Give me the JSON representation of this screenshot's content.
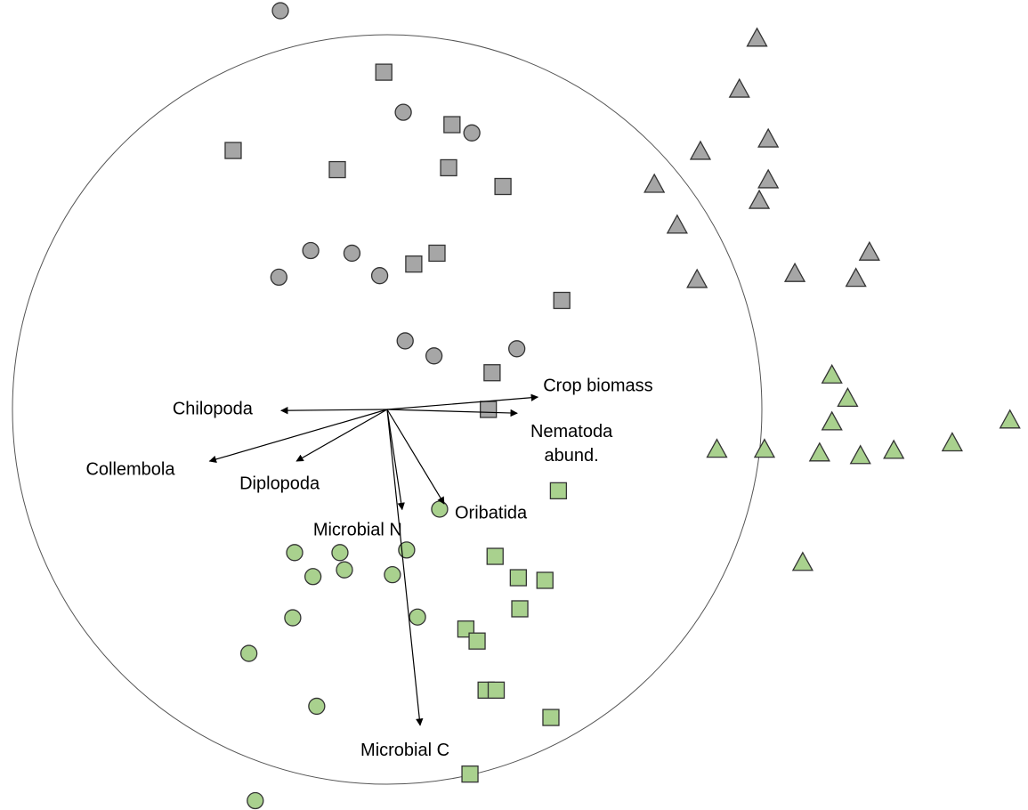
{
  "chart_data": {
    "type": "scatter",
    "title": "",
    "xlabel": "",
    "ylabel": "",
    "grid": false,
    "legend": "none",
    "origin": [
      0,
      0
    ],
    "circle_radius": 1.0,
    "colors": {
      "gray_fill": "#a6a6a6",
      "green_fill": "#a9d18e",
      "marker_stroke": "#333333",
      "axis_line": "#000000"
    },
    "vectors": [
      {
        "label": "Chilopoda",
        "x": -0.283,
        "y": -0.003
      },
      {
        "label": "Collembola",
        "x": -0.474,
        "y": -0.138
      },
      {
        "label": "Diplopoda",
        "x": -0.242,
        "y": -0.138
      },
      {
        "label": "Crop biomass",
        "x": 0.402,
        "y": 0.033
      },
      {
        "label": "Nematoda abund.",
        "x": 0.347,
        "y": -0.01
      },
      {
        "label": "Oribatida",
        "x": 0.152,
        "y": -0.252
      },
      {
        "label": "Microbial N",
        "x": 0.04,
        "y": -0.267
      },
      {
        "label": "Microbial C",
        "x": 0.088,
        "y": -0.843
      }
    ],
    "series": [
      {
        "marker": "circle",
        "color": "gray",
        "points": [
          [
            -0.285,
            1.064
          ],
          [
            0.043,
            0.793
          ],
          [
            0.226,
            0.738
          ],
          [
            -0.204,
            0.424
          ],
          [
            -0.094,
            0.417
          ],
          [
            -0.289,
            0.353
          ],
          [
            -0.02,
            0.357
          ],
          [
            0.048,
            0.183
          ],
          [
            0.125,
            0.143
          ],
          [
            0.346,
            0.162
          ]
        ]
      },
      {
        "marker": "square",
        "color": "gray",
        "points": [
          [
            -0.009,
            0.9
          ],
          [
            0.173,
            0.76
          ],
          [
            -0.411,
            0.691
          ],
          [
            -0.133,
            0.64
          ],
          [
            0.164,
            0.645
          ],
          [
            0.309,
            0.595
          ],
          [
            0.071,
            0.388
          ],
          [
            0.133,
            0.417
          ],
          [
            0.466,
            0.291
          ],
          [
            0.28,
            0.098
          ],
          [
            0.27,
            0.0
          ]
        ]
      },
      {
        "marker": "triangle",
        "color": "gray",
        "points": [
          [
            0.987,
            0.991
          ],
          [
            0.94,
            0.855
          ],
          [
            1.017,
            0.722
          ],
          [
            0.836,
            0.689
          ],
          [
            1.017,
            0.613
          ],
          [
            0.713,
            0.601
          ],
          [
            0.993,
            0.558
          ],
          [
            0.774,
            0.492
          ],
          [
            1.287,
            0.42
          ],
          [
            0.827,
            0.347
          ],
          [
            1.088,
            0.363
          ],
          [
            1.251,
            0.35
          ]
        ]
      },
      {
        "marker": "circle",
        "color": "green",
        "points": [
          [
            0.14,
            -0.266
          ],
          [
            -0.247,
            -0.382
          ],
          [
            -0.126,
            -0.382
          ],
          [
            0.052,
            -0.375
          ],
          [
            -0.198,
            -0.446
          ],
          [
            -0.114,
            -0.428
          ],
          [
            0.014,
            -0.441
          ],
          [
            -0.252,
            -0.556
          ],
          [
            0.081,
            -0.554
          ],
          [
            -0.369,
            -0.651
          ],
          [
            -0.188,
            -0.792
          ],
          [
            -0.352,
            -1.044
          ]
        ]
      },
      {
        "marker": "square",
        "color": "green",
        "points": [
          [
            0.457,
            -0.217
          ],
          [
            0.288,
            -0.392
          ],
          [
            0.35,
            -0.449
          ],
          [
            0.421,
            -0.456
          ],
          [
            0.354,
            -0.532
          ],
          [
            0.21,
            -0.586
          ],
          [
            0.24,
            -0.618
          ],
          [
            0.264,
            -0.749
          ],
          [
            0.291,
            -0.749
          ],
          [
            0.437,
            -0.822
          ],
          [
            0.221,
            -0.973
          ]
        ]
      },
      {
        "marker": "triangle",
        "color": "green",
        "points": [
          [
            1.187,
            0.092
          ],
          [
            1.229,
            0.03
          ],
          [
            1.187,
            -0.033
          ],
          [
            1.662,
            -0.028
          ],
          [
            1.508,
            -0.089
          ],
          [
            0.88,
            -0.106
          ],
          [
            1.007,
            -0.106
          ],
          [
            1.154,
            -0.116
          ],
          [
            1.263,
            -0.123
          ],
          [
            1.352,
            -0.109
          ],
          [
            1.109,
            -0.408
          ]
        ]
      }
    ]
  }
}
